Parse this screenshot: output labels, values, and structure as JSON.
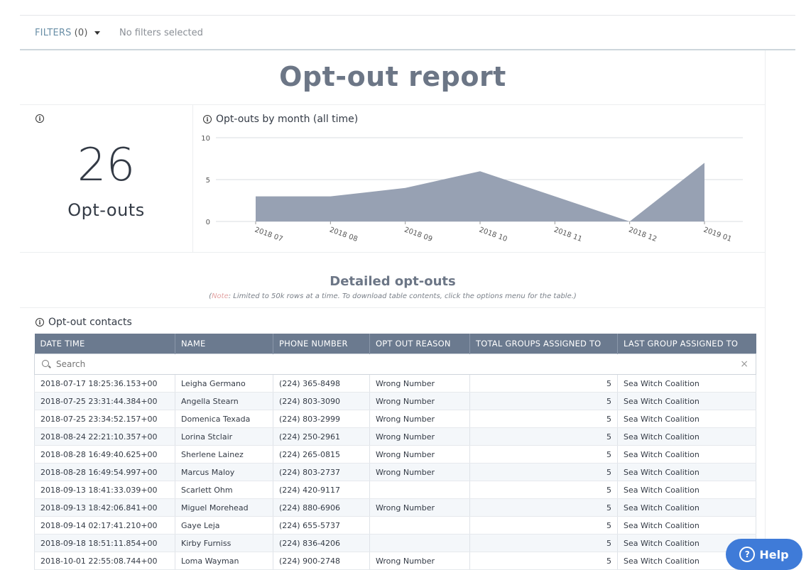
{
  "filters": {
    "label": "FILTERS",
    "count": "(0)",
    "status": "No filters selected"
  },
  "report": {
    "title": "Opt-out report"
  },
  "kpi": {
    "info": "i",
    "value": "26",
    "label": "Opt-outs"
  },
  "chart": {
    "info": "i",
    "title": "Opt-outs by month (all time)"
  },
  "chart_data": {
    "type": "area",
    "title": "Opt-outs by month (all time)",
    "categories": [
      "2018 07",
      "2018 08",
      "2018 09",
      "2018 10",
      "2018 11",
      "2018 12",
      "2019 01"
    ],
    "values": [
      3,
      3,
      4,
      6,
      3,
      0,
      7
    ],
    "yticks": [
      0,
      5,
      10
    ],
    "ylim": [
      0,
      10
    ],
    "grid": true,
    "color": "#97a1b3"
  },
  "detail": {
    "title": "Detailed opt-outs",
    "note_prefix": "(",
    "note_word": "Note",
    "note_text": ":  Limited to 50k rows at a time. To download table contents, click the options menu for the table.)"
  },
  "contacts": {
    "info": "i",
    "title": "Opt-out contacts",
    "search_placeholder": "Search",
    "clear": "×",
    "columns": [
      "DATE TIME",
      "NAME",
      "PHONE NUMBER",
      "OPT OUT REASON",
      "TOTAL GROUPS ASSIGNED TO",
      "LAST GROUP ASSIGNED TO"
    ],
    "rows": [
      [
        "2018-07-17 18:25:36.153+00",
        "Leigha Germano",
        "(224) 365-8498",
        "Wrong Number",
        "5",
        "Sea Witch Coalition"
      ],
      [
        "2018-07-25 23:31:44.384+00",
        "Angella Stearn",
        "(224) 803-3090",
        "Wrong Number",
        "5",
        "Sea Witch Coalition"
      ],
      [
        "2018-07-25 23:34:52.157+00",
        "Domenica Texada",
        "(224) 803-2999",
        "Wrong Number",
        "5",
        "Sea Witch Coalition"
      ],
      [
        "2018-08-24 22:21:10.357+00",
        "Lorina Stclair",
        "(224) 250-2961",
        "Wrong Number",
        "5",
        "Sea Witch Coalition"
      ],
      [
        "2018-08-28 16:49:40.625+00",
        "Sherlene Lainez",
        "(224) 265-0815",
        "Wrong Number",
        "5",
        "Sea Witch Coalition"
      ],
      [
        "2018-08-28 16:49:54.997+00",
        "Marcus Maloy",
        "(224) 803-2737",
        "Wrong Number",
        "5",
        "Sea Witch Coalition"
      ],
      [
        "2018-09-13 18:41:33.039+00",
        "Scarlett Ohm",
        "(224) 420-9117",
        "",
        "5",
        "Sea Witch Coalition"
      ],
      [
        "2018-09-13 18:42:06.841+00",
        "Miguel Morehead",
        "(224) 880-6906",
        "Wrong Number",
        "5",
        "Sea Witch Coalition"
      ],
      [
        "2018-09-14 02:17:41.210+00",
        "Gaye Leja",
        "(224) 655-5737",
        "",
        "5",
        "Sea Witch Coalition"
      ],
      [
        "2018-09-18 18:51:11.854+00",
        "Kirby Furniss",
        "(224) 836-4206",
        "",
        "5",
        "Sea Witch Coalition"
      ],
      [
        "2018-10-01 22:55:08.744+00",
        "Loma Wayman",
        "(224) 900-2748",
        "Wrong Number",
        "5",
        "Sea Witch Coalition"
      ]
    ]
  },
  "help": {
    "icon": "?",
    "label": "Help"
  }
}
